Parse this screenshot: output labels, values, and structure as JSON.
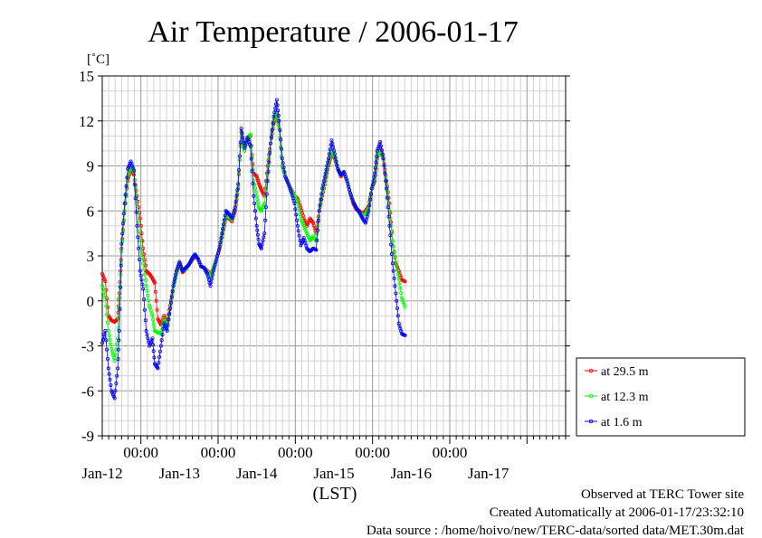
{
  "chart_data": {
    "type": "line",
    "title": "Air Temperature / 2006-01-17",
    "y_unit": "[˚C]",
    "xlabel": "(LST)",
    "ylim": [
      -9,
      15
    ],
    "yticks": [
      15,
      12,
      9,
      6,
      3,
      0,
      -3,
      -6,
      -9
    ],
    "xlim_days": [
      11.5,
      17.5
    ],
    "x_time_ticks": [
      "00:00",
      "00:00",
      "00:00",
      "00:00",
      "00:00"
    ],
    "x_date_labels": [
      "Jan-12",
      "Jan-13",
      "Jan-14",
      "Jan-15",
      "Jan-16",
      "Jan-17"
    ],
    "grid": true,
    "legend_position": "right",
    "series": [
      {
        "name": "at 29.5 m",
        "color": "#ff0000",
        "points": [
          [
            11.5,
            1.8
          ],
          [
            11.54,
            1.3
          ],
          [
            11.58,
            -1.0
          ],
          [
            11.62,
            -1.3
          ],
          [
            11.66,
            -1.4
          ],
          [
            11.7,
            -1.2
          ],
          [
            11.72,
            0.5
          ],
          [
            11.75,
            3.5
          ],
          [
            11.79,
            6.0
          ],
          [
            11.83,
            8.0
          ],
          [
            11.87,
            8.8
          ],
          [
            11.91,
            8.4
          ],
          [
            11.95,
            7.0
          ],
          [
            11.99,
            5.5
          ],
          [
            12.03,
            3.5
          ],
          [
            12.07,
            2.0
          ],
          [
            12.11,
            1.8
          ],
          [
            12.15,
            1.5
          ],
          [
            12.18,
            1.2
          ],
          [
            12.22,
            -1.2
          ],
          [
            12.26,
            -1.6
          ],
          [
            12.3,
            -1.0
          ],
          [
            12.34,
            -1.5
          ],
          [
            12.38,
            -0.3
          ],
          [
            12.42,
            1.0
          ],
          [
            12.46,
            1.8
          ],
          [
            12.5,
            2.5
          ],
          [
            12.54,
            1.9
          ],
          [
            12.58,
            2.1
          ],
          [
            12.62,
            2.4
          ],
          [
            12.66,
            2.7
          ],
          [
            12.7,
            3.0
          ],
          [
            12.74,
            2.8
          ],
          [
            12.78,
            2.3
          ],
          [
            12.82,
            2.2
          ],
          [
            12.86,
            2.0
          ],
          [
            12.9,
            1.7
          ],
          [
            12.94,
            2.2
          ],
          [
            12.98,
            2.8
          ],
          [
            13.02,
            3.5
          ],
          [
            13.06,
            4.5
          ],
          [
            13.1,
            5.5
          ],
          [
            13.14,
            5.5
          ],
          [
            13.18,
            5.3
          ],
          [
            13.22,
            6.0
          ],
          [
            13.26,
            7.5
          ],
          [
            13.3,
            11.3
          ],
          [
            13.34,
            10.0
          ],
          [
            13.38,
            10.8
          ],
          [
            13.42,
            11.0
          ],
          [
            13.46,
            8.5
          ],
          [
            13.5,
            8.3
          ],
          [
            13.53,
            7.8
          ],
          [
            13.56,
            7.4
          ],
          [
            13.6,
            7.0
          ],
          [
            13.64,
            9.0
          ],
          [
            13.68,
            10.5
          ],
          [
            13.72,
            11.8
          ],
          [
            13.76,
            12.5
          ],
          [
            13.79,
            11.5
          ],
          [
            13.83,
            9.0
          ],
          [
            13.87,
            8.3
          ],
          [
            13.91,
            7.8
          ],
          [
            13.95,
            7.4
          ],
          [
            13.99,
            7.0
          ],
          [
            14.03,
            6.8
          ],
          [
            14.07,
            6.2
          ],
          [
            14.11,
            5.5
          ],
          [
            14.15,
            5.0
          ],
          [
            14.19,
            5.5
          ],
          [
            14.23,
            5.2
          ],
          [
            14.27,
            4.5
          ],
          [
            14.31,
            6.0
          ],
          [
            14.35,
            7.0
          ],
          [
            14.39,
            8.0
          ],
          [
            14.43,
            9.0
          ],
          [
            14.47,
            9.8
          ],
          [
            14.51,
            9.5
          ],
          [
            14.55,
            8.8
          ],
          [
            14.59,
            8.3
          ],
          [
            14.63,
            8.6
          ],
          [
            14.67,
            8.0
          ],
          [
            14.71,
            7.2
          ],
          [
            14.75,
            6.5
          ],
          [
            14.79,
            6.1
          ],
          [
            14.83,
            6.0
          ],
          [
            14.87,
            5.8
          ],
          [
            14.91,
            6.0
          ],
          [
            14.95,
            6.3
          ],
          [
            14.99,
            7.5
          ],
          [
            15.03,
            8.0
          ],
          [
            15.06,
            9.5
          ],
          [
            15.1,
            10.2
          ],
          [
            15.14,
            9.5
          ],
          [
            15.18,
            8.0
          ],
          [
            15.22,
            6.5
          ],
          [
            15.26,
            4.0
          ],
          [
            15.3,
            2.5
          ],
          [
            15.34,
            2.0
          ],
          [
            15.38,
            1.4
          ],
          [
            15.42,
            1.3
          ]
        ]
      },
      {
        "name": "at 12.3 m",
        "color": "#00ff00",
        "points": [
          [
            11.5,
            1.0
          ],
          [
            11.54,
            0.2
          ],
          [
            11.58,
            -2.0
          ],
          [
            11.62,
            -3.2
          ],
          [
            11.66,
            -4.0
          ],
          [
            11.7,
            -2.5
          ],
          [
            11.72,
            0.2
          ],
          [
            11.75,
            3.3
          ],
          [
            11.79,
            6.0
          ],
          [
            11.83,
            8.2
          ],
          [
            11.87,
            9.0
          ],
          [
            11.91,
            8.6
          ],
          [
            11.95,
            6.5
          ],
          [
            11.99,
            4.0
          ],
          [
            12.03,
            2.5
          ],
          [
            12.07,
            1.0
          ],
          [
            12.11,
            -0.3
          ],
          [
            12.15,
            -1.0
          ],
          [
            12.18,
            -2.0
          ],
          [
            12.22,
            -2.1
          ],
          [
            12.26,
            -2.2
          ],
          [
            12.3,
            -1.2
          ],
          [
            12.34,
            -1.8
          ],
          [
            12.38,
            -0.5
          ],
          [
            12.42,
            0.8
          ],
          [
            12.46,
            1.8
          ],
          [
            12.5,
            2.6
          ],
          [
            12.54,
            2.0
          ],
          [
            12.58,
            2.1
          ],
          [
            12.62,
            2.4
          ],
          [
            12.66,
            2.8
          ],
          [
            12.7,
            3.1
          ],
          [
            12.74,
            2.8
          ],
          [
            12.78,
            2.3
          ],
          [
            12.82,
            2.2
          ],
          [
            12.86,
            1.9
          ],
          [
            12.9,
            1.6
          ],
          [
            12.94,
            2.2
          ],
          [
            12.98,
            2.8
          ],
          [
            13.02,
            3.6
          ],
          [
            13.06,
            4.6
          ],
          [
            13.1,
            5.7
          ],
          [
            13.14,
            5.6
          ],
          [
            13.18,
            5.4
          ],
          [
            13.22,
            6.2
          ],
          [
            13.26,
            7.6
          ],
          [
            13.3,
            11.2
          ],
          [
            13.34,
            10.0
          ],
          [
            13.38,
            10.9
          ],
          [
            13.42,
            11.1
          ],
          [
            13.46,
            8.0
          ],
          [
            13.5,
            7.0
          ],
          [
            13.53,
            6.2
          ],
          [
            13.56,
            6.0
          ],
          [
            13.6,
            6.5
          ],
          [
            13.64,
            8.5
          ],
          [
            13.68,
            10.5
          ],
          [
            13.72,
            12.0
          ],
          [
            13.76,
            12.6
          ],
          [
            13.79,
            11.5
          ],
          [
            13.83,
            9.0
          ],
          [
            13.87,
            8.3
          ],
          [
            13.91,
            7.8
          ],
          [
            13.95,
            7.3
          ],
          [
            13.99,
            7.0
          ],
          [
            14.03,
            6.6
          ],
          [
            14.07,
            5.5
          ],
          [
            14.11,
            5.0
          ],
          [
            14.15,
            4.5
          ],
          [
            14.19,
            4.0
          ],
          [
            14.23,
            4.3
          ],
          [
            14.27,
            4.0
          ],
          [
            14.31,
            6.0
          ],
          [
            14.35,
            7.2
          ],
          [
            14.39,
            8.2
          ],
          [
            14.43,
            9.2
          ],
          [
            14.47,
            10.0
          ],
          [
            14.51,
            9.6
          ],
          [
            14.55,
            8.8
          ],
          [
            14.59,
            8.4
          ],
          [
            14.63,
            8.6
          ],
          [
            14.67,
            8.0
          ],
          [
            14.71,
            7.2
          ],
          [
            14.75,
            6.6
          ],
          [
            14.79,
            6.2
          ],
          [
            14.83,
            5.9
          ],
          [
            14.87,
            5.7
          ],
          [
            14.91,
            5.8
          ],
          [
            14.95,
            6.2
          ],
          [
            14.99,
            7.5
          ],
          [
            15.03,
            8.2
          ],
          [
            15.06,
            9.8
          ],
          [
            15.1,
            10.0
          ],
          [
            15.14,
            9.4
          ],
          [
            15.18,
            7.8
          ],
          [
            15.22,
            6.0
          ],
          [
            15.26,
            4.0
          ],
          [
            15.3,
            2.6
          ],
          [
            15.34,
            1.5
          ],
          [
            15.38,
            0.2
          ],
          [
            15.42,
            -0.4
          ]
        ]
      },
      {
        "name": "at 1.6 m",
        "color": "#0000ff",
        "points": [
          [
            11.5,
            -2.8
          ],
          [
            11.54,
            -2.0
          ],
          [
            11.58,
            -4.5
          ],
          [
            11.62,
            -6.0
          ],
          [
            11.66,
            -6.5
          ],
          [
            11.7,
            -4.5
          ],
          [
            11.72,
            -2.0
          ],
          [
            11.75,
            3.8
          ],
          [
            11.79,
            6.5
          ],
          [
            11.83,
            8.8
          ],
          [
            11.87,
            9.3
          ],
          [
            11.91,
            8.7
          ],
          [
            11.95,
            5.0
          ],
          [
            11.99,
            2.0
          ],
          [
            12.03,
            0.8
          ],
          [
            12.07,
            -2.0
          ],
          [
            12.11,
            -3.0
          ],
          [
            12.15,
            -2.5
          ],
          [
            12.18,
            -4.2
          ],
          [
            12.22,
            -4.5
          ],
          [
            12.26,
            -3.0
          ],
          [
            12.3,
            -1.5
          ],
          [
            12.34,
            -2.0
          ],
          [
            12.38,
            -0.5
          ],
          [
            12.42,
            1.0
          ],
          [
            12.46,
            2.0
          ],
          [
            12.5,
            2.6
          ],
          [
            12.54,
            2.0
          ],
          [
            12.58,
            2.2
          ],
          [
            12.62,
            2.4
          ],
          [
            12.66,
            2.8
          ],
          [
            12.7,
            3.1
          ],
          [
            12.74,
            2.8
          ],
          [
            12.78,
            2.3
          ],
          [
            12.82,
            2.2
          ],
          [
            12.86,
            1.8
          ],
          [
            12.9,
            1.0
          ],
          [
            12.94,
            2.0
          ],
          [
            12.98,
            2.8
          ],
          [
            13.02,
            3.6
          ],
          [
            13.06,
            4.8
          ],
          [
            13.1,
            6.0
          ],
          [
            13.14,
            5.8
          ],
          [
            13.18,
            5.5
          ],
          [
            13.22,
            6.2
          ],
          [
            13.26,
            7.8
          ],
          [
            13.3,
            11.5
          ],
          [
            13.34,
            10.2
          ],
          [
            13.38,
            10.9
          ],
          [
            13.42,
            10.3
          ],
          [
            13.46,
            7.0
          ],
          [
            13.5,
            5.0
          ],
          [
            13.53,
            3.8
          ],
          [
            13.56,
            3.5
          ],
          [
            13.6,
            4.5
          ],
          [
            13.64,
            8.0
          ],
          [
            13.68,
            10.5
          ],
          [
            13.72,
            12.3
          ],
          [
            13.76,
            13.4
          ],
          [
            13.79,
            12.0
          ],
          [
            13.83,
            9.5
          ],
          [
            13.87,
            8.3
          ],
          [
            13.91,
            7.8
          ],
          [
            13.95,
            7.2
          ],
          [
            13.99,
            6.5
          ],
          [
            14.03,
            5.0
          ],
          [
            14.07,
            3.7
          ],
          [
            14.11,
            4.2
          ],
          [
            14.15,
            3.5
          ],
          [
            14.19,
            3.3
          ],
          [
            14.23,
            3.5
          ],
          [
            14.27,
            3.4
          ],
          [
            14.31,
            6.0
          ],
          [
            14.35,
            7.5
          ],
          [
            14.39,
            8.5
          ],
          [
            14.43,
            9.5
          ],
          [
            14.47,
            10.7
          ],
          [
            14.51,
            9.8
          ],
          [
            14.55,
            8.8
          ],
          [
            14.59,
            8.4
          ],
          [
            14.63,
            8.6
          ],
          [
            14.67,
            8.0
          ],
          [
            14.71,
            7.2
          ],
          [
            14.75,
            6.6
          ],
          [
            14.79,
            6.2
          ],
          [
            14.83,
            5.9
          ],
          [
            14.87,
            5.5
          ],
          [
            14.91,
            5.2
          ],
          [
            14.95,
            6.0
          ],
          [
            14.99,
            7.5
          ],
          [
            15.03,
            8.5
          ],
          [
            15.06,
            10.0
          ],
          [
            15.1,
            10.6
          ],
          [
            15.14,
            9.5
          ],
          [
            15.18,
            7.5
          ],
          [
            15.22,
            5.0
          ],
          [
            15.26,
            2.5
          ],
          [
            15.3,
            0.5
          ],
          [
            15.34,
            -1.5
          ],
          [
            15.38,
            -2.2
          ],
          [
            15.42,
            -2.3
          ]
        ]
      }
    ]
  },
  "footer": {
    "line1": "Observed at TERC Tower site",
    "line2": "Created Automatically at 2006-01-17/23:32:10",
    "line3": "Data source : /home/hoivo/new/TERC-data/sorted data/MET.30m.dat"
  }
}
